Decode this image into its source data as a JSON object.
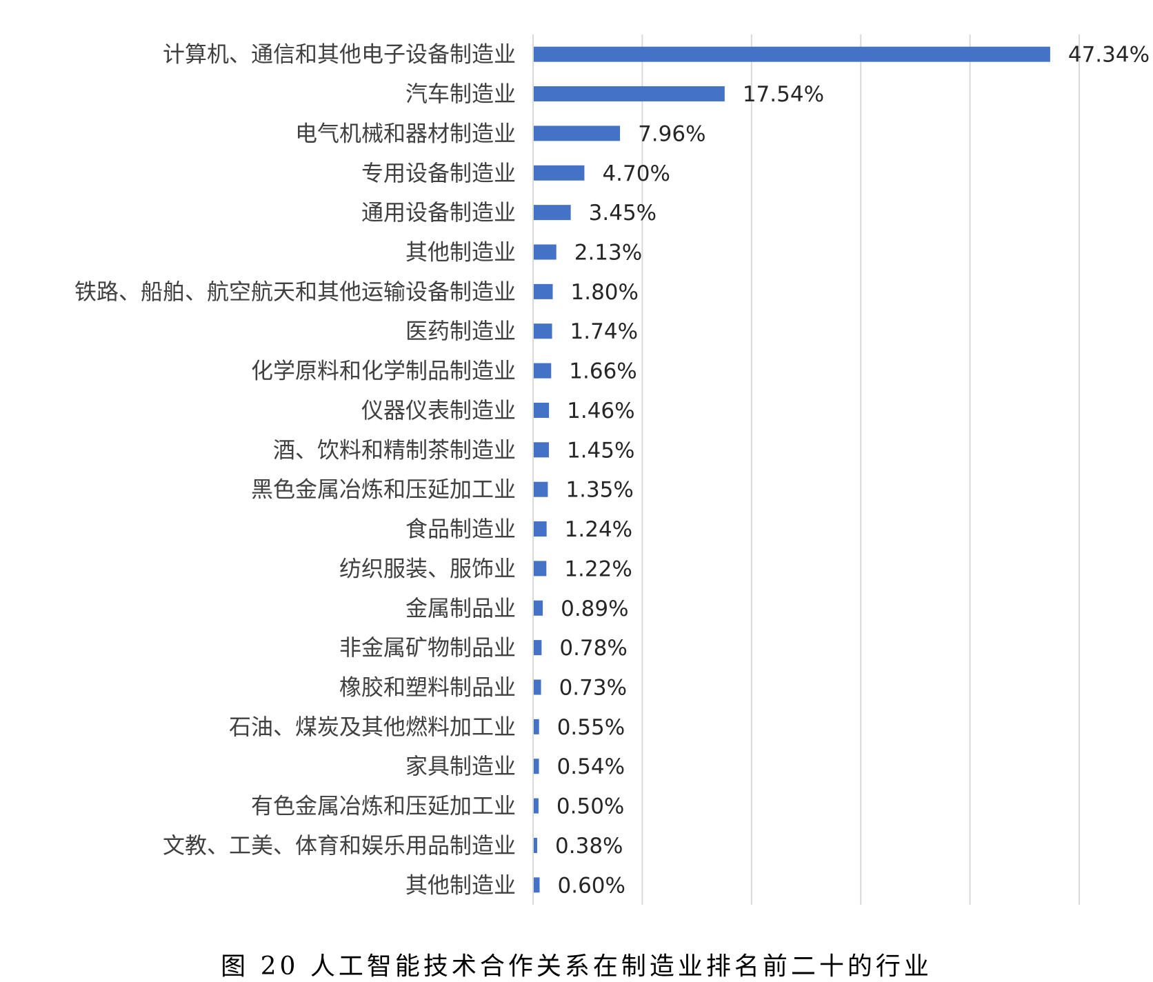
{
  "caption": "图 20 人工智能技术合作关系在制造业排名前二十的行业",
  "chart_data": {
    "type": "bar",
    "orientation": "horizontal",
    "title": "",
    "xlabel": "",
    "ylabel": "",
    "xlim": [
      0,
      50
    ],
    "grid": true,
    "bar_color": "#4472C4",
    "gridline_color": "#D9D9D9",
    "value_format": "percent_2dp",
    "categories": [
      "计算机、通信和其他电子设备制造业",
      "汽车制造业",
      "电气机械和器材制造业",
      "专用设备制造业",
      "通用设备制造业",
      "其他制造业",
      "铁路、船舶、航空航天和其他运输设备制造业",
      "医药制造业",
      "化学原料和化学制品制造业",
      "仪器仪表制造业",
      "酒、饮料和精制茶制造业",
      "黑色金属冶炼和压延加工业",
      "食品制造业",
      "纺织服装、服饰业",
      "金属制品业",
      "非金属矿物制品业",
      "橡胶和塑料制品业",
      "石油、煤炭及其他燃料加工业",
      "家具制造业",
      "有色金属冶炼和压延加工业",
      "文教、工美、体育和娱乐用品制造业",
      "其他制造业"
    ],
    "values": [
      47.34,
      17.54,
      7.96,
      4.7,
      3.45,
      2.13,
      1.8,
      1.74,
      1.66,
      1.46,
      1.45,
      1.35,
      1.24,
      1.22,
      0.89,
      0.78,
      0.73,
      0.55,
      0.54,
      0.5,
      0.38,
      0.6
    ],
    "data_labels": [
      "47.34%",
      "17.54%",
      "7.96%",
      "4.70%",
      "3.45%",
      "2.13%",
      "1.80%",
      "1.74%",
      "1.66%",
      "1.46%",
      "1.45%",
      "1.35%",
      "1.24%",
      "1.22%",
      "0.89%",
      "0.78%",
      "0.73%",
      "0.55%",
      "0.54%",
      "0.50%",
      "0.38%",
      "0.60%"
    ]
  }
}
